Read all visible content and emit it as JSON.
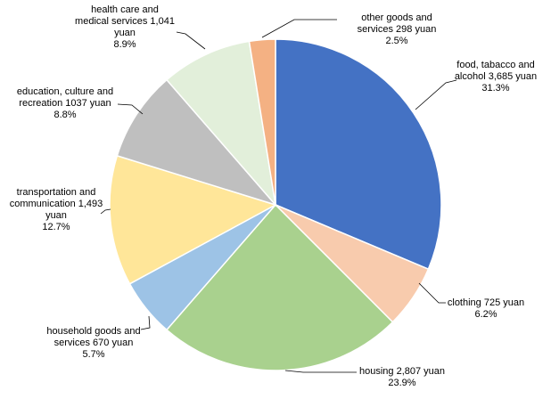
{
  "chart_data": {
    "type": "pie",
    "title": "",
    "start": "12 o'clock",
    "direction": "clockwise",
    "legend": "none",
    "slices": [
      {
        "key": "food",
        "value": 3685,
        "percent": "31.3%",
        "color": "#4472C4",
        "label_lines": [
          "food, tabacco  and",
          "alcohol 3,685 yuan",
          "31.3%"
        ]
      },
      {
        "key": "clothing",
        "value": 725,
        "percent": "6.2%",
        "color": "#F8CBAD",
        "label_lines": [
          "clothing  725 yuan",
          "6.2%"
        ]
      },
      {
        "key": "housing",
        "value": 2807,
        "percent": "23.9%",
        "color": "#A9D18E",
        "label_lines": [
          "housing 2,807 yuan",
          "23.9%"
        ]
      },
      {
        "key": "household",
        "value": 670,
        "percent": "5.7%",
        "color": "#9DC3E6",
        "label_lines": [
          "household goods and",
          "services 670 yuan",
          "5.7%"
        ]
      },
      {
        "key": "transportation",
        "value": 1493,
        "percent": "12.7%",
        "color": "#FFE699",
        "label_lines": [
          "transportation  and",
          "communication  1,493",
          "yuan",
          "12.7%"
        ]
      },
      {
        "key": "education",
        "value": 1037,
        "percent": "8.8%",
        "color": "#BFBFBF",
        "label_lines": [
          "education,  culture and",
          "recreation  1037 yuan",
          "8.8%"
        ]
      },
      {
        "key": "health",
        "value": 1041,
        "percent": "8.9%",
        "color": "#E2EFDA",
        "label_lines": [
          "health care and",
          "medical services 1,041",
          "yuan",
          "8.9%"
        ]
      },
      {
        "key": "other",
        "value": 298,
        "percent": "2.5%",
        "color": "#F4B183",
        "label_lines": [
          "other goods and",
          "services 298 yuan",
          "2.5%"
        ]
      }
    ]
  }
}
